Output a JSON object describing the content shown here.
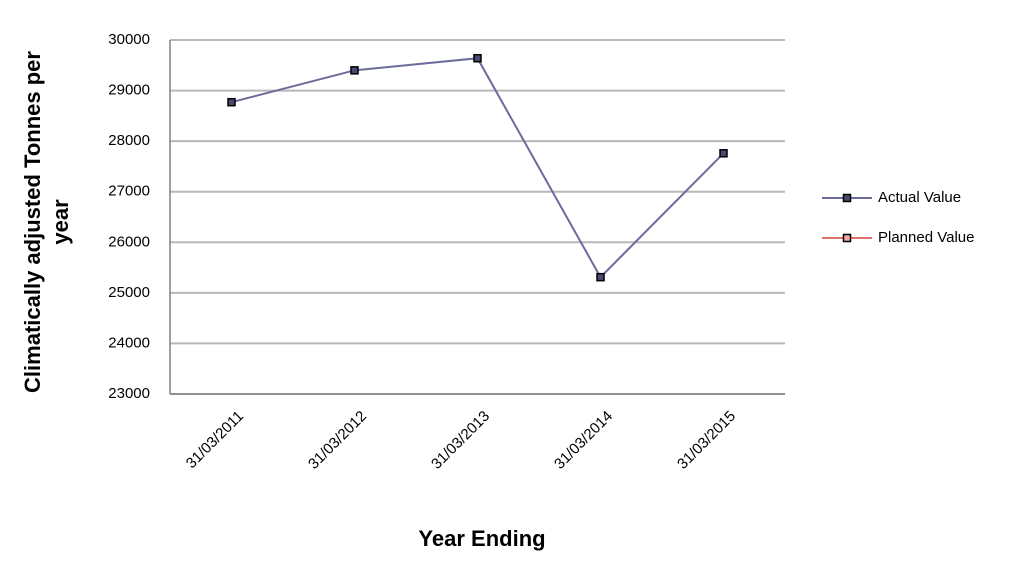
{
  "chart_data": {
    "type": "line",
    "x_label": "Year Ending",
    "y_label": [
      "Climatically adjusted Tonnes per",
      "year"
    ],
    "categories": [
      "31/03/2011",
      "31/03/2012",
      "31/03/2013",
      "31/03/2014",
      "31/03/2015"
    ],
    "series": [
      {
        "name": "Actual Value",
        "color": "#6b6b9c",
        "marker_fill": "#4a4a6e",
        "values": [
          28770,
          29400,
          29640,
          25310,
          27760
        ]
      },
      {
        "name": "Planned Value",
        "color": "#e0706a",
        "marker_fill": "#f4a9a4",
        "values": [
          null,
          null,
          null,
          null,
          null
        ]
      }
    ],
    "ylim": [
      23000,
      30000
    ],
    "yticks": [
      23000,
      24000,
      25000,
      26000,
      27000,
      28000,
      29000,
      30000
    ],
    "grid": true,
    "legend": "right"
  }
}
